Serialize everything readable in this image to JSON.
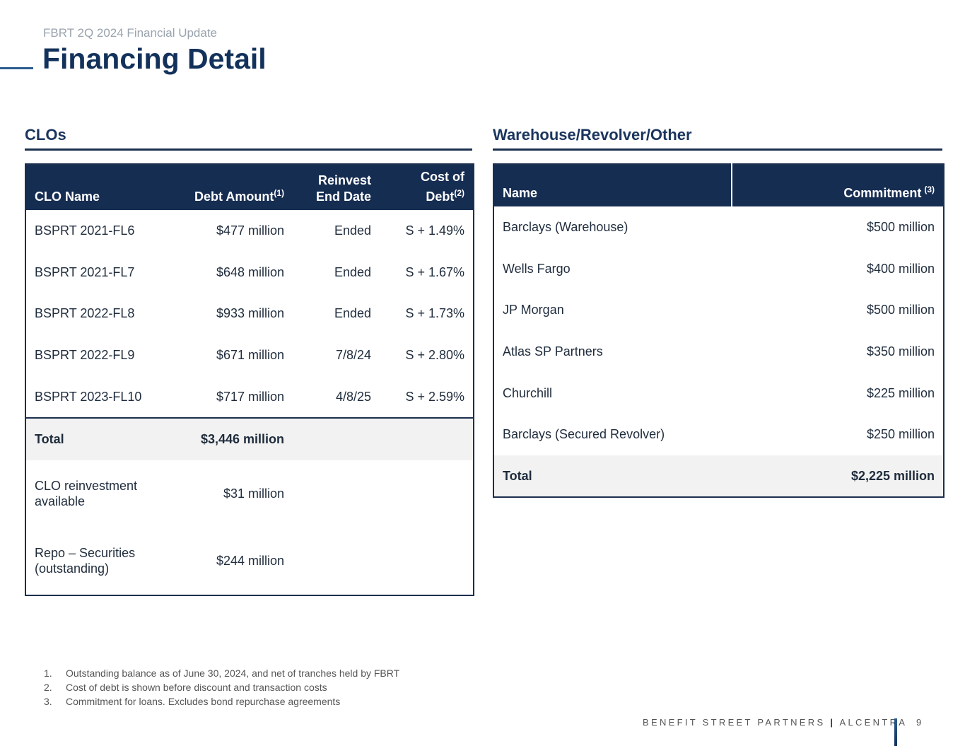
{
  "header": {
    "subtitle": "FBRT 2Q 2024 Financial Update",
    "title": "Financing Detail"
  },
  "clo": {
    "heading": "CLOs",
    "columns": [
      {
        "label": "CLO Name"
      },
      {
        "label": "Debt Amount",
        "note": "(1)"
      },
      {
        "label": "Reinvest End Date"
      },
      {
        "label": "Cost of Debt",
        "note": "(2)"
      }
    ],
    "rows": [
      [
        "BSPRT 2021-FL6",
        "$477 million",
        "Ended",
        "S + 1.49%"
      ],
      [
        "BSPRT 2021-FL7",
        "$648 million",
        "Ended",
        "S + 1.67%"
      ],
      [
        "BSPRT 2022-FL8",
        "$933 million",
        "Ended",
        "S + 1.73%"
      ],
      [
        "BSPRT 2022-FL9",
        "$671 million",
        "7/8/24",
        "S + 2.80%"
      ],
      [
        "BSPRT 2023-FL10",
        "$717 million",
        "4/8/25",
        "S + 2.59%"
      ]
    ],
    "total": [
      "Total",
      "$3,446 million"
    ],
    "extra": [
      [
        "CLO reinvestment available",
        "$31 million"
      ],
      [
        "Repo – Securities (outstanding)",
        "$244 million"
      ]
    ]
  },
  "warehouse": {
    "heading": "Warehouse/Revolver/Other",
    "columns": [
      {
        "label": "Name"
      },
      {
        "label": "Commitment",
        "note": "(3)"
      }
    ],
    "rows": [
      [
        "Barclays (Warehouse)",
        "$500 million"
      ],
      [
        "Wells Fargo",
        "$400 million"
      ],
      [
        "JP Morgan",
        "$500 million"
      ],
      [
        "Atlas SP Partners",
        "$350 million"
      ],
      [
        "Churchill",
        "$225 million"
      ],
      [
        "Barclays (Secured Revolver)",
        "$250 million"
      ]
    ],
    "total": [
      "Total",
      "$2,225 million"
    ]
  },
  "footnotes": [
    {
      "number": "1.",
      "text": "Outstanding balance as of June 30, 2024, and net of tranches held by FBRT"
    },
    {
      "number": "2.",
      "text": "Cost of debt is shown before discount and transaction costs"
    },
    {
      "number": "3.",
      "text": "Commitment for loans.  Excludes bond repurchase agreements"
    }
  ],
  "footer": {
    "left": "BENEFIT STREET PARTNERS",
    "right": "ALCENTRA",
    "page": "9"
  }
}
